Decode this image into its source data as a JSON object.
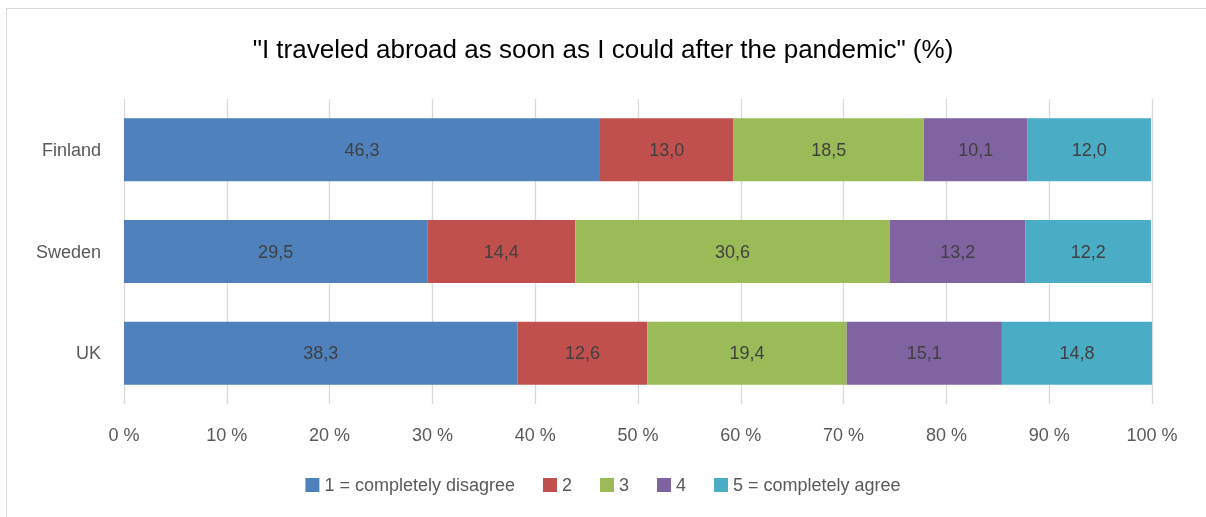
{
  "chart_data": {
    "type": "bar",
    "title": "\"I traveled abroad as soon as I could after the pandemic\" (%)",
    "categories": [
      "Finland",
      "Sweden",
      "UK"
    ],
    "series": [
      {
        "name": "1 = completely disagree",
        "color": "#4f81bd",
        "values": [
          46.3,
          29.5,
          38.3
        ],
        "value_labels": [
          "46,3",
          "29,5",
          "38,3"
        ]
      },
      {
        "name": "2",
        "color": "#c0504d",
        "values": [
          13.0,
          14.4,
          12.6
        ],
        "value_labels": [
          "13,0",
          "14,4",
          "12,6"
        ]
      },
      {
        "name": "3",
        "color": "#9bbb59",
        "values": [
          18.5,
          30.6,
          19.4
        ],
        "value_labels": [
          "18,5",
          "30,6",
          "19,4"
        ]
      },
      {
        "name": "4",
        "color": "#8064a2",
        "values": [
          10.1,
          13.2,
          15.1
        ],
        "value_labels": [
          "10,1",
          "13,2",
          "15,1"
        ]
      },
      {
        "name": "5 = completely agree",
        "color": "#4bacc6",
        "values": [
          12.0,
          12.2,
          14.8
        ],
        "value_labels": [
          "12,0",
          "12,2",
          "14,8"
        ]
      }
    ],
    "stacked": true,
    "orientation": "horizontal",
    "xlim": [
      0,
      100
    ],
    "xticks": [
      {
        "value": 0,
        "label": "0 %"
      },
      {
        "value": 10,
        "label": "10 %"
      },
      {
        "value": 20,
        "label": "20 %"
      },
      {
        "value": 30,
        "label": "30 %"
      },
      {
        "value": 40,
        "label": "40 %"
      },
      {
        "value": 50,
        "label": "50 %"
      },
      {
        "value": 60,
        "label": "60 %"
      },
      {
        "value": 70,
        "label": "70 %"
      },
      {
        "value": 80,
        "label": "80 %"
      },
      {
        "value": 90,
        "label": "90 %"
      },
      {
        "value": 100,
        "label": "100 %"
      }
    ],
    "grid": "x",
    "legend": "bottom"
  }
}
